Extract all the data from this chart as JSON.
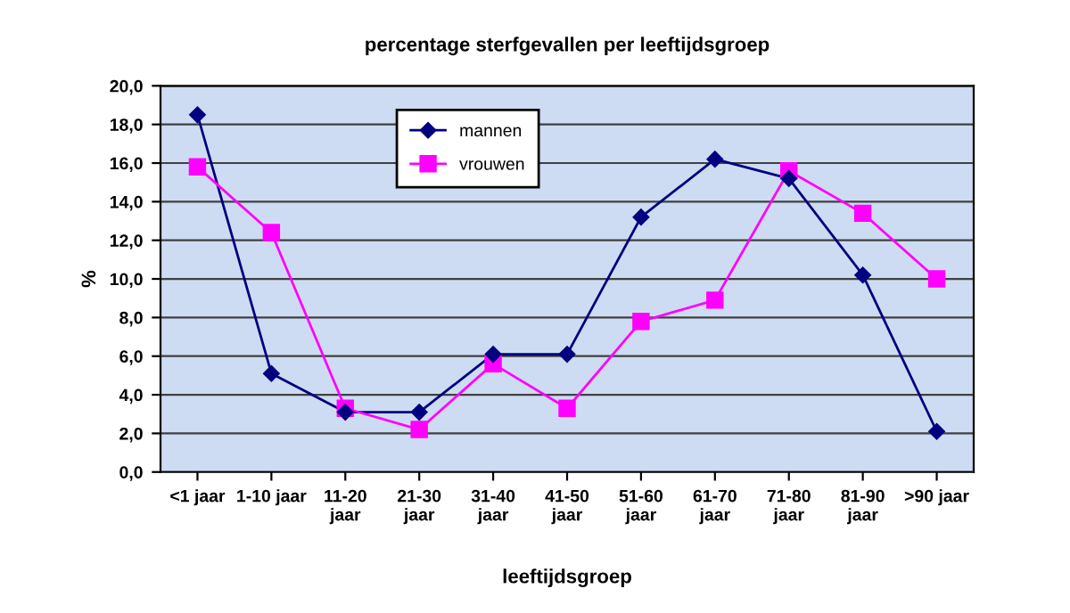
{
  "chart_data": {
    "type": "line",
    "title": "percentage sterfgevallen per leeftijdsgroep",
    "xlabel": "leeftijdsgroep",
    "ylabel": "%",
    "categories": [
      "<1 jaar",
      "1-10 jaar",
      "11-20\njaar",
      "21-30\njaar",
      "31-40\njaar",
      "41-50\njaar",
      "51-60\njaar",
      "61-70\njaar",
      "71-80\njaar",
      "81-90\njaar",
      ">90 jaar"
    ],
    "series": [
      {
        "name": "mannen",
        "color": "#000080",
        "marker": "diamond",
        "values": [
          18.5,
          5.1,
          3.1,
          3.1,
          6.1,
          6.1,
          13.2,
          16.2,
          15.2,
          10.2,
          2.1
        ]
      },
      {
        "name": "vrouwen",
        "color": "#ff00ff",
        "marker": "square",
        "values": [
          15.8,
          12.4,
          3.3,
          2.2,
          5.6,
          3.3,
          7.8,
          8.9,
          15.6,
          13.4,
          10.0
        ]
      }
    ],
    "ylim": [
      0,
      20
    ],
    "yticks": [
      {
        "value": 0,
        "label": "0,0"
      },
      {
        "value": 2,
        "label": "2,0"
      },
      {
        "value": 4,
        "label": "4,0"
      },
      {
        "value": 6,
        "label": "6,0"
      },
      {
        "value": 8,
        "label": "8,0"
      },
      {
        "value": 10,
        "label": "10,0"
      },
      {
        "value": 12,
        "label": "12,0"
      },
      {
        "value": 14,
        "label": "14,0"
      },
      {
        "value": 16,
        "label": "16,0"
      },
      {
        "value": 18,
        "label": "18,0"
      },
      {
        "value": 20,
        "label": "20,0"
      }
    ],
    "grid": "y",
    "legend": "top",
    "line_style": "solid"
  }
}
